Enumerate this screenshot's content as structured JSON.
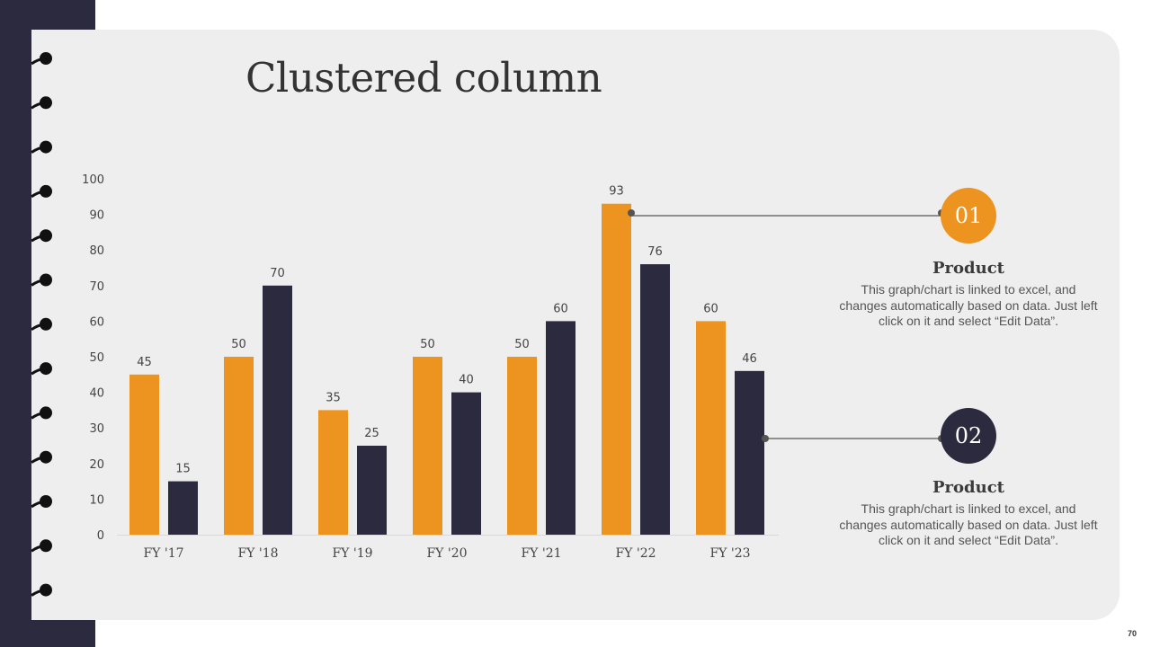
{
  "slide": {
    "title": "Clustered column",
    "page_number": "70"
  },
  "colors": {
    "sidebar": "#2b2a3e",
    "paper": "#eeeeee",
    "orange": "#ed9420",
    "navy": "#2b2a3e"
  },
  "callouts": [
    {
      "number": "01",
      "title": "Product",
      "description": "This graph/chart is linked to excel, and changes automatically based on data. Just left click on it and select “Edit Data”.",
      "color": "#ed9420"
    },
    {
      "number": "02",
      "title": "Product",
      "description": "This graph/chart is linked to excel, and changes automatically based on data. Just left click on it and select “Edit Data”.",
      "color": "#2b2a3e"
    }
  ],
  "chart_data": {
    "type": "bar",
    "title": "",
    "xlabel": "",
    "ylabel": "",
    "categories": [
      "FY '17",
      "FY '18",
      "FY '19",
      "FY '20",
      "FY '21",
      "FY '22",
      "FY '23"
    ],
    "series": [
      {
        "values": [
          45,
          50,
          35,
          50,
          50,
          93,
          60
        ],
        "color": "#ed9420"
      },
      {
        "values": [
          15,
          70,
          25,
          40,
          60,
          76,
          46
        ],
        "color": "#2b2a3e"
      }
    ],
    "ylim": [
      0,
      100
    ],
    "yticks": [
      0,
      10,
      20,
      30,
      40,
      50,
      60,
      70,
      80,
      90,
      100
    ],
    "grid": false,
    "legend": "none",
    "data_labels": true
  }
}
